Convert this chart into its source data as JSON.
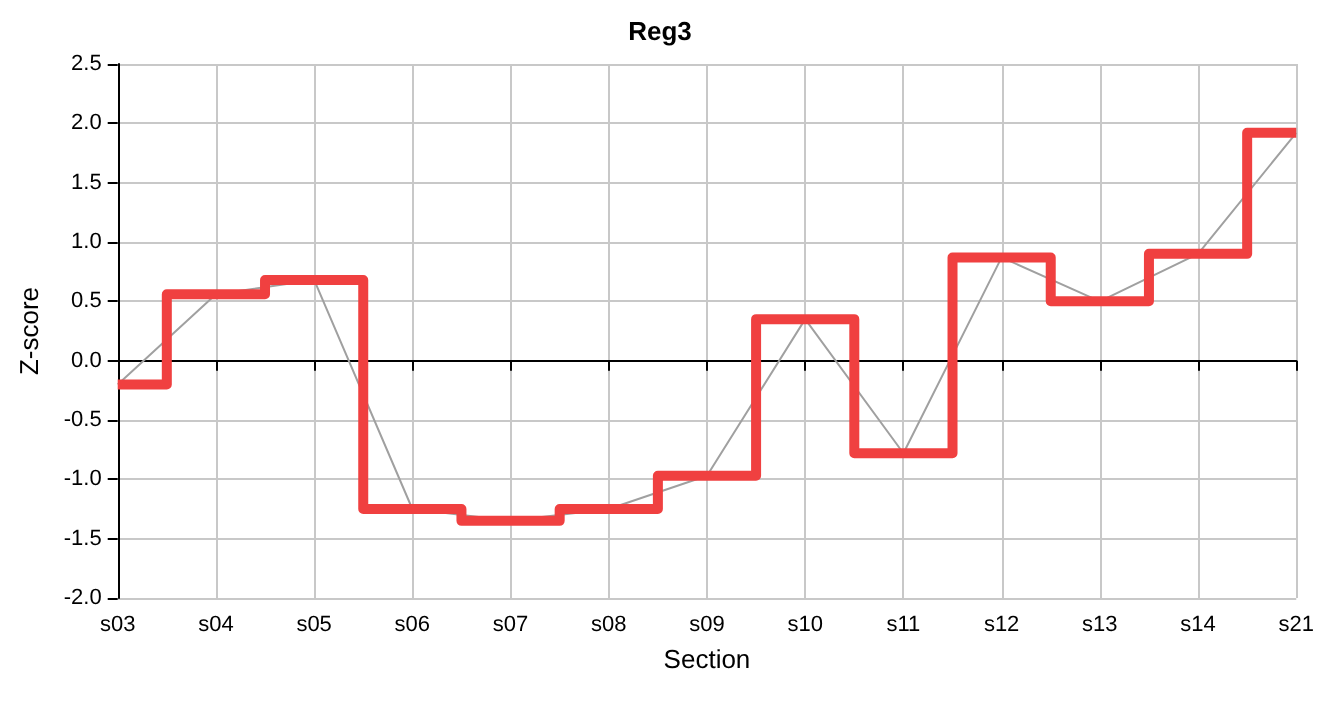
{
  "chart_data": {
    "type": "line",
    "title": "Reg3",
    "xlabel": "Section",
    "ylabel": "Z-score",
    "categories": [
      "s03",
      "s04",
      "s05",
      "s06",
      "s07",
      "s08",
      "s09",
      "s10",
      "s11",
      "s12",
      "s13",
      "s14",
      "s21"
    ],
    "series": [
      {
        "color": "#a0a0a0",
        "values": [
          -0.2,
          0.56,
          0.68,
          -1.25,
          -1.35,
          -1.25,
          -0.97,
          0.35,
          -0.78,
          0.87,
          0.5,
          0.9,
          1.92
        ]
      },
      {
        "type": "step",
        "color": "#f04040",
        "values": [
          -0.2,
          0.56,
          0.68,
          -1.25,
          -1.35,
          -1.25,
          -0.97,
          0.35,
          -0.78,
          0.87,
          0.5,
          0.9,
          1.92
        ]
      }
    ],
    "ylim": [
      -2,
      2.5
    ],
    "yticks": [
      {
        "value": -2,
        "label": "-2.0"
      },
      {
        "value": -1.5,
        "label": "-1.5"
      },
      {
        "value": -1,
        "label": "-1.0"
      },
      {
        "value": -0.5,
        "label": "-0.5"
      },
      {
        "value": 0,
        "label": "0.0"
      },
      {
        "value": 0.5,
        "label": "0.5"
      },
      {
        "value": 1,
        "label": "1.0"
      },
      {
        "value": 1.5,
        "label": "1.5"
      },
      {
        "value": 2,
        "label": "2.0"
      },
      {
        "value": 2.5,
        "label": "2.5"
      }
    ],
    "grid": true,
    "marker": "none",
    "line_style": "solid"
  }
}
